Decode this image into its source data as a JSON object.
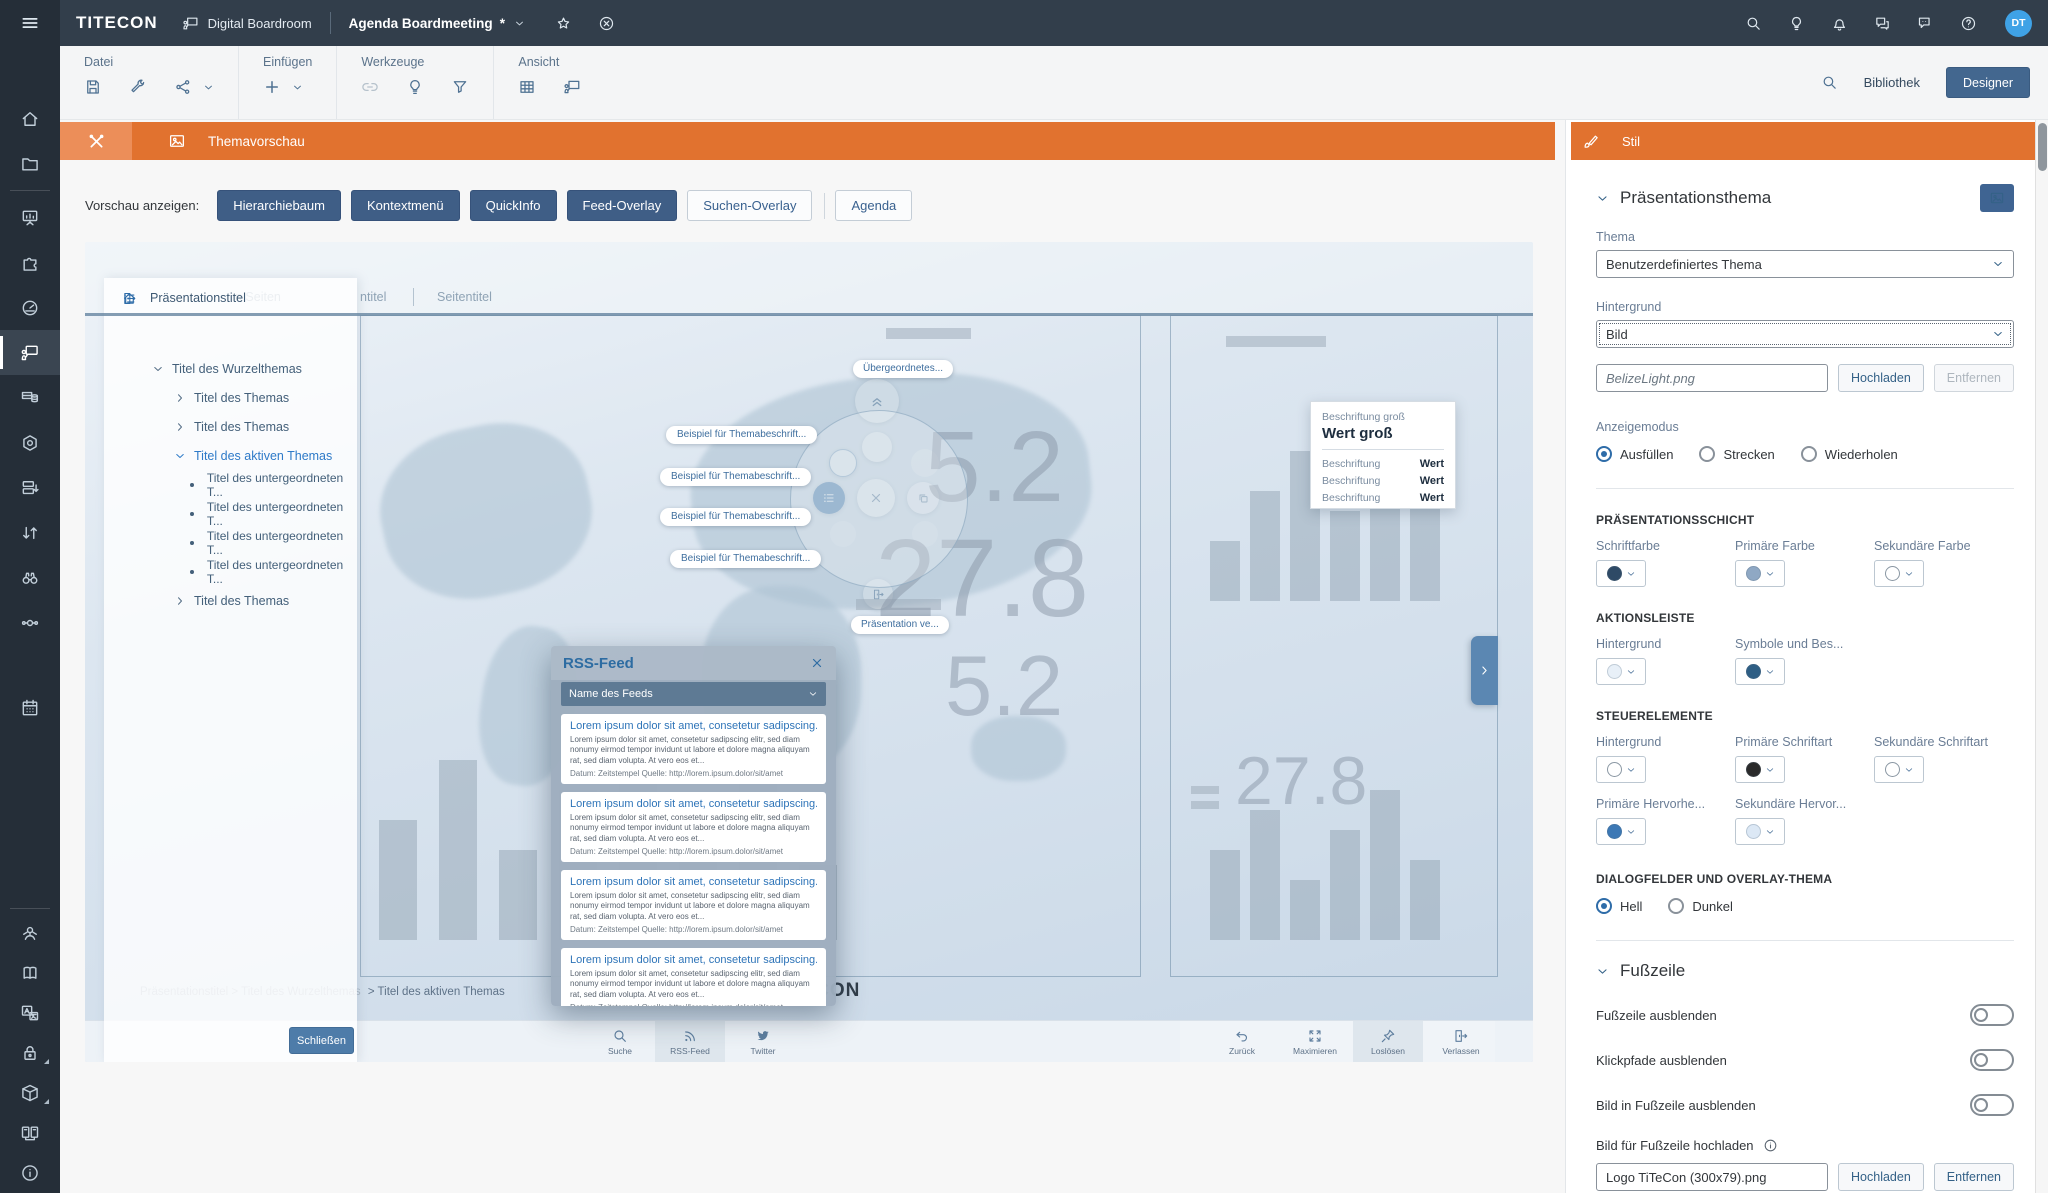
{
  "topbar": {
    "logo": "TITECON",
    "app": "Digital Boardroom",
    "document": "Agenda Boardmeeting",
    "modified_marker": "*",
    "avatar_initials": "DT",
    "right_icons": [
      "search",
      "bulb",
      "bell",
      "chat",
      "feedback",
      "help"
    ]
  },
  "sidebar": {
    "items": [
      {
        "icon": "home"
      },
      {
        "icon": "folder"
      },
      {
        "divider": true
      },
      {
        "icon": "board"
      },
      {
        "icon": "puzzle"
      },
      {
        "icon": "gauge"
      },
      {
        "icon": "presenter",
        "active": true
      },
      {
        "icon": "table"
      },
      {
        "icon": "hexagon"
      },
      {
        "icon": "rows"
      },
      {
        "icon": "swap"
      },
      {
        "icon": "binoculars"
      },
      {
        "icon": "nodes"
      },
      {
        "gap": true
      },
      {
        "icon": "calendar"
      },
      {
        "grow": true
      },
      {
        "divider": true
      },
      {
        "icon": "robot",
        "small": true
      },
      {
        "icon": "book",
        "small": true
      },
      {
        "icon": "translate",
        "small": true
      },
      {
        "icon": "lock",
        "small": true,
        "corner": true
      },
      {
        "icon": "box",
        "small": true,
        "corner": true
      },
      {
        "icon": "server",
        "small": true
      },
      {
        "icon": "info",
        "small": true
      }
    ]
  },
  "toolbar": {
    "groups": [
      {
        "label": "Datei",
        "icons": [
          "save",
          "wrench",
          "share",
          "chevron-down"
        ]
      },
      {
        "label": "Einfügen",
        "icons": [
          "plus",
          "chevron-down"
        ]
      },
      {
        "label": "Werkzeuge",
        "icons": [
          "link",
          "bulb",
          "funnel"
        ],
        "disabled": [
          "link"
        ]
      },
      {
        "label": "Ansicht",
        "icons": [
          "grid",
          "present"
        ]
      }
    ],
    "bibliothek": "Bibliothek",
    "designer": "Designer"
  },
  "tabbar": {
    "title": "Themavorschau"
  },
  "preview": {
    "controls_label": "Vorschau anzeigen:",
    "controls": [
      {
        "label": "Hierarchiebaum",
        "active": true
      },
      {
        "label": "Kontextmenü",
        "active": true
      },
      {
        "label": "QuickInfo",
        "active": true
      },
      {
        "label": "Feed-Overlay",
        "active": true
      },
      {
        "label": "Suchen-Overlay",
        "active": false
      },
      {
        "label": "Agenda",
        "active": false,
        "divider_before": true
      }
    ],
    "panel_title": "Präsentationstitel",
    "hidden_tab_fragment": "n Seiten",
    "tab_fragments": [
      "ntitel",
      "Seitentitel"
    ],
    "tree": {
      "root": "Titel des Wurzelthemas",
      "items": [
        {
          "label": "Titel des Themas",
          "kind": "collapsed"
        },
        {
          "label": "Titel des Themas",
          "kind": "collapsed"
        },
        {
          "label": "Titel des aktiven Themas",
          "kind": "active"
        },
        {
          "label": "Titel des untergeordneten T...",
          "kind": "leaf"
        },
        {
          "label": "Titel des untergeordneten T...",
          "kind": "leaf"
        },
        {
          "label": "Titel des untergeordneten T...",
          "kind": "leaf"
        },
        {
          "label": "Titel des untergeordneten T...",
          "kind": "leaf"
        },
        {
          "label": "Titel des Themas",
          "kind": "collapsed"
        }
      ]
    },
    "radial": {
      "top_tooltip": "Übergeordnetes...",
      "bottom_tooltip": "Präsentation ve...",
      "labels": [
        "Beispiel für Themabeschrift...",
        "Beispiel für Themabeschrift...",
        "Beispiel für Themabeschrift...",
        "Beispiel für Themabeschrift..."
      ],
      "icons": [
        "chevrons-up",
        "x",
        "list",
        "copy",
        "door"
      ]
    },
    "quickinfo": {
      "caption": "Beschriftung groß",
      "value": "Wert groß",
      "rows": [
        {
          "label": "Beschriftung",
          "value": "Wert"
        },
        {
          "label": "Beschriftung",
          "value": "Wert"
        },
        {
          "label": "Beschriftung",
          "value": "Wert"
        }
      ]
    },
    "rss": {
      "title": "RSS-Feed",
      "select_value": "Name des Feeds",
      "items": [
        {
          "title": "Lorem ipsum dolor sit amet, consetetur sadipscing...",
          "body": "Lorem ipsum dolor sit amet, consetetur sadipscing elitr, sed diam nonumy eirmod tempor invidunt ut labore et dolore magna aliquyam rat, sed diam volupta. At vero eos et...",
          "meta": "Datum: Zeitstempel Quelle: http://lorem.ipsum.dolor/sit/amet"
        },
        {
          "title": "Lorem ipsum dolor sit amet, consetetur sadipscing...",
          "body": "Lorem ipsum dolor sit amet, consetetur sadipscing elitr, sed diam nonumy eirmod tempor invidunt ut labore et dolore magna aliquyam rat, sed diam volupta. At vero eos et...",
          "meta": "Datum: Zeitstempel Quelle: http://lorem.ipsum.dolor/sit/amet"
        },
        {
          "title": "Lorem ipsum dolor sit amet, consetetur sadipscing...",
          "body": "Lorem ipsum dolor sit amet, consetetur sadipscing elitr, sed diam nonumy eirmod tempor invidunt ut labore et dolore magna aliquyam rat, sed diam volupta. At vero eos et...",
          "meta": "Datum: Zeitstempel Quelle: http://lorem.ipsum.dolor/sit/amet"
        },
        {
          "title": "Lorem ipsum dolor sit amet, consetetur sadipscing...",
          "body": "Lorem ipsum dolor sit amet, consetetur sadipscing elitr, sed diam nonumy eirmod tempor invidunt ut labore et dolore magna aliquyam rat, sed diam volupta. At vero eos et...",
          "meta": "Datum: Zeitstempel Quelle: http://lorem.ipsum.dolor/sit/amet"
        }
      ]
    },
    "numbers": [
      "5.2",
      "27.8",
      "5.2",
      "27.8"
    ],
    "breadcrumb_dim": "Präsentationstitel > Titel des Wurzelthemas",
    "breadcrumb_active": "> Titel des aktiven Themas",
    "footer_logo": "TITECON",
    "close_button": "Schließen",
    "dock_center": [
      {
        "label": "Suche",
        "icon": "search",
        "active": false
      },
      {
        "label": "RSS-Feed",
        "icon": "rss",
        "active": true
      },
      {
        "label": "Twitter",
        "icon": "twitter",
        "active": false
      }
    ],
    "dock_right": [
      {
        "label": "Zurück",
        "icon": "undo",
        "active": false
      },
      {
        "label": "Maximieren",
        "icon": "maximize",
        "active": false
      },
      {
        "label": "Loslösen",
        "icon": "pin",
        "active": true
      },
      {
        "label": "Verlassen",
        "icon": "door",
        "active": false
      }
    ]
  },
  "style_panel": {
    "title": "Stil",
    "theme_section_title": "Präsentationsthema",
    "thema_label": "Thema",
    "thema_value": "Benutzerdefiniertes Thema",
    "hintergrund_label": "Hintergrund",
    "hintergrund_value": "Bild",
    "bg_image_placeholder": "BelizeLight.png",
    "hochladen": "Hochladen",
    "entfernen": "Entfernen",
    "anzeigemodus_label": "Anzeigemodus",
    "anzeigemodus_options": [
      {
        "label": "Ausfüllen",
        "selected": true
      },
      {
        "label": "Strecken",
        "selected": false
      },
      {
        "label": "Wiederholen",
        "selected": false
      }
    ],
    "swatch_groups": [
      {
        "heading": "PRÄSENTATIONSSCHICHT",
        "swatches": [
          {
            "label": "Schriftfarbe",
            "color": "#2e4a66"
          },
          {
            "label": "Primäre Farbe",
            "color": "#8fa8c4"
          },
          {
            "label": "Sekundäre Farbe",
            "color": "#ffffff",
            "outline": true
          }
        ]
      },
      {
        "heading": "AKTIONSLEISTE",
        "swatches": [
          {
            "label": "Hintergrund",
            "color": "#e8f0f8"
          },
          {
            "label": "Symbole und Bes...",
            "color": "#2e5e84"
          }
        ]
      },
      {
        "heading": "STEUERELEMENTE",
        "swatches": [
          {
            "label": "Hintergrund",
            "color": "#ffffff",
            "outline": true
          },
          {
            "label": "Primäre Schriftart",
            "color": "#2a2a2a"
          },
          {
            "label": "Sekundäre Schriftart",
            "color": "#ffffff",
            "outline": true
          },
          {
            "label": "Primäre Hervorhe...",
            "color": "#3c78b5"
          },
          {
            "label": "Sekundäre Hervor...",
            "color": "#dce8f5"
          }
        ]
      }
    ],
    "dialog_heading": "DIALOGFELDER UND OVERLAY-THEMA",
    "dialog_options": [
      {
        "label": "Hell",
        "selected": true
      },
      {
        "label": "Dunkel",
        "selected": false
      }
    ],
    "footer_section_title": "Fußzeile",
    "footer_toggles": [
      "Fußzeile ausblenden",
      "Klickpfade ausblenden",
      "Bild in Fußzeile ausblenden"
    ],
    "footer_upload_label": "Bild für Fußzeile hochladen",
    "footer_file_value": "Logo TiTeCon (300x79).png"
  },
  "colors": {
    "accent_orange": "#e1722f",
    "shell_dark": "#323e4b",
    "button_dark": "#3f5e86",
    "avatar_blue": "#3fa2e6"
  }
}
